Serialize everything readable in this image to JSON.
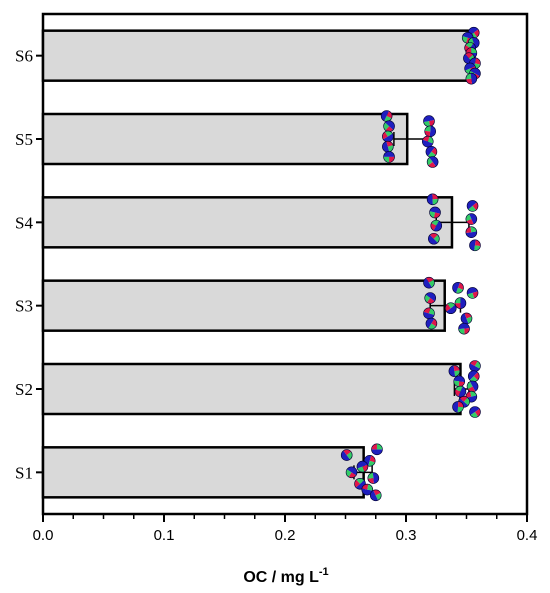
{
  "chart_data": {
    "type": "bar",
    "orientation": "horizontal",
    "title": "",
    "xlabel_main": "OC / mg L",
    "xlabel_sup": "-1",
    "ylabel": "",
    "xlim": [
      0,
      0.4
    ],
    "x_ticks": [
      "0.0",
      "0.1",
      "0.2",
      "0.3",
      "0.4"
    ],
    "x_tick_values": [
      0.0,
      0.1,
      0.2,
      0.3,
      0.4
    ],
    "categories": [
      "S1",
      "S2",
      "S3",
      "S4",
      "S5",
      "S6"
    ],
    "values": [
      0.265,
      0.345,
      0.332,
      0.338,
      0.301,
      0.355
    ],
    "error_low": [
      0.257,
      0.34,
      0.32,
      0.325,
      0.29,
      0.353
    ],
    "error_high": [
      0.272,
      0.352,
      0.345,
      0.352,
      0.318,
      0.357
    ],
    "points": [
      [
        0.276,
        0.251,
        0.27,
        0.264,
        0.255,
        0.273,
        0.262,
        0.268,
        0.275
      ],
      [
        0.357,
        0.34,
        0.356,
        0.344,
        0.355,
        0.345,
        0.354,
        0.348,
        0.343,
        0.357
      ],
      [
        0.319,
        0.343,
        0.355,
        0.32,
        0.345,
        0.337,
        0.319,
        0.35,
        0.321,
        0.348
      ],
      [
        0.322,
        0.355,
        0.324,
        0.354,
        0.325,
        0.354,
        0.323,
        0.357
      ],
      [
        0.284,
        0.319,
        0.286,
        0.32,
        0.285,
        0.318,
        0.285,
        0.321,
        0.286,
        0.322
      ],
      [
        0.356,
        0.351,
        0.356,
        0.353,
        0.354,
        0.352,
        0.357,
        0.353,
        0.357,
        0.354
      ]
    ],
    "grid": false,
    "legend": "none",
    "colors": {
      "bar_fill": "#d9d9d9",
      "bar_stroke": "#000000",
      "dot_blue": "#1f1fbf",
      "dot_red": "#e0164a",
      "dot_green": "#33cc66"
    }
  }
}
